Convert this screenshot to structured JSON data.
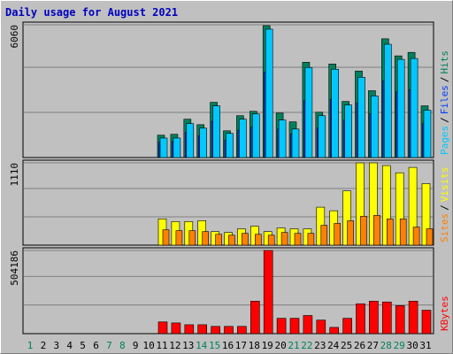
{
  "chart_data": {
    "type": "bar",
    "title": "Daily usage for August 2021",
    "categories": [
      "1",
      "2",
      "3",
      "4",
      "5",
      "6",
      "7",
      "8",
      "9",
      "10",
      "11",
      "12",
      "13",
      "14",
      "15",
      "16",
      "17",
      "18",
      "19",
      "20",
      "21",
      "22",
      "23",
      "24",
      "25",
      "26",
      "27",
      "28",
      "29",
      "30",
      "31"
    ],
    "weekends": [
      0,
      6,
      7,
      13,
      14,
      20,
      21,
      27,
      28
    ],
    "weekend_color": "#00805c",
    "weekday_color": "#000000",
    "legend_separator": "/",
    "grid_divisions": 3,
    "panels": [
      {
        "ylim": [
          0,
          6060
        ],
        "yticks": [
          6060
        ],
        "series": [
          {
            "name": "Hits",
            "color": "#00805c",
            "values": [
              0,
              0,
              0,
              0,
              0,
              0,
              0,
              0,
              0,
              0,
              1020,
              1060,
              1750,
              1500,
              2520,
              1220,
              1910,
              2110,
              6020,
              2030,
              1630,
              4350,
              2070,
              4270,
              2560,
              3950,
              3050,
              5420,
              4640,
              4800,
              2360
            ]
          },
          {
            "name": "Files",
            "color": "#0040ff",
            "values": [
              0,
              0,
              0,
              0,
              0,
              0,
              0,
              0,
              0,
              0,
              700,
              720,
              1150,
              1000,
              1650,
              800,
              1250,
              1400,
              3900,
              1300,
              1080,
              2600,
              1350,
              2650,
              1700,
              2500,
              2000,
              3500,
              3000,
              3100,
              1550
            ]
          },
          {
            "name": "Pages",
            "color": "#00c8ff",
            "values": [
              0,
              0,
              0,
              0,
              0,
              0,
              0,
              0,
              0,
              0,
              890,
              890,
              1550,
              1340,
              2360,
              1100,
              1750,
              1990,
              5860,
              1710,
              1300,
              4110,
              1910,
              4030,
              2400,
              3660,
              2810,
              5170,
              4480,
              4520,
              2160
            ]
          }
        ]
      },
      {
        "ylim": [
          0,
          1110
        ],
        "yticks": [
          1110
        ],
        "series": [
          {
            "name": "Visits",
            "color": "#ffff00",
            "values": [
              0,
              0,
              0,
              0,
              0,
              0,
              0,
              0,
              0,
              0,
              354,
              318,
              318,
              330,
              183,
              171,
              220,
              256,
              183,
              232,
              220,
              220,
              512,
              464,
              732,
              1110,
              1110,
              1073,
              976,
              1049,
              830
            ]
          },
          {
            "name": "Sites",
            "color": "#ff8000",
            "values": [
              0,
              0,
              0,
              0,
              0,
              0,
              0,
              0,
              0,
              0,
              207,
              195,
              195,
              183,
              146,
              134,
              159,
              146,
              134,
              171,
              159,
              159,
              268,
              293,
              329,
              390,
              402,
              354,
              354,
              244,
              220
            ]
          }
        ]
      },
      {
        "ylim": [
          0,
          504186
        ],
        "yticks": [
          504186
        ],
        "series": [
          {
            "name": "KBytes",
            "color": "#ff0000",
            "values": [
              0,
              0,
              0,
              0,
              0,
              0,
              0,
              0,
              0,
              0,
              71000,
              65000,
              54000,
              54000,
              44000,
              44000,
              44000,
              197000,
              504186,
              93000,
              93000,
              110000,
              82000,
              38000,
              93000,
              181000,
              197000,
              192000,
              170000,
              197000,
              142000
            ]
          }
        ]
      }
    ]
  }
}
